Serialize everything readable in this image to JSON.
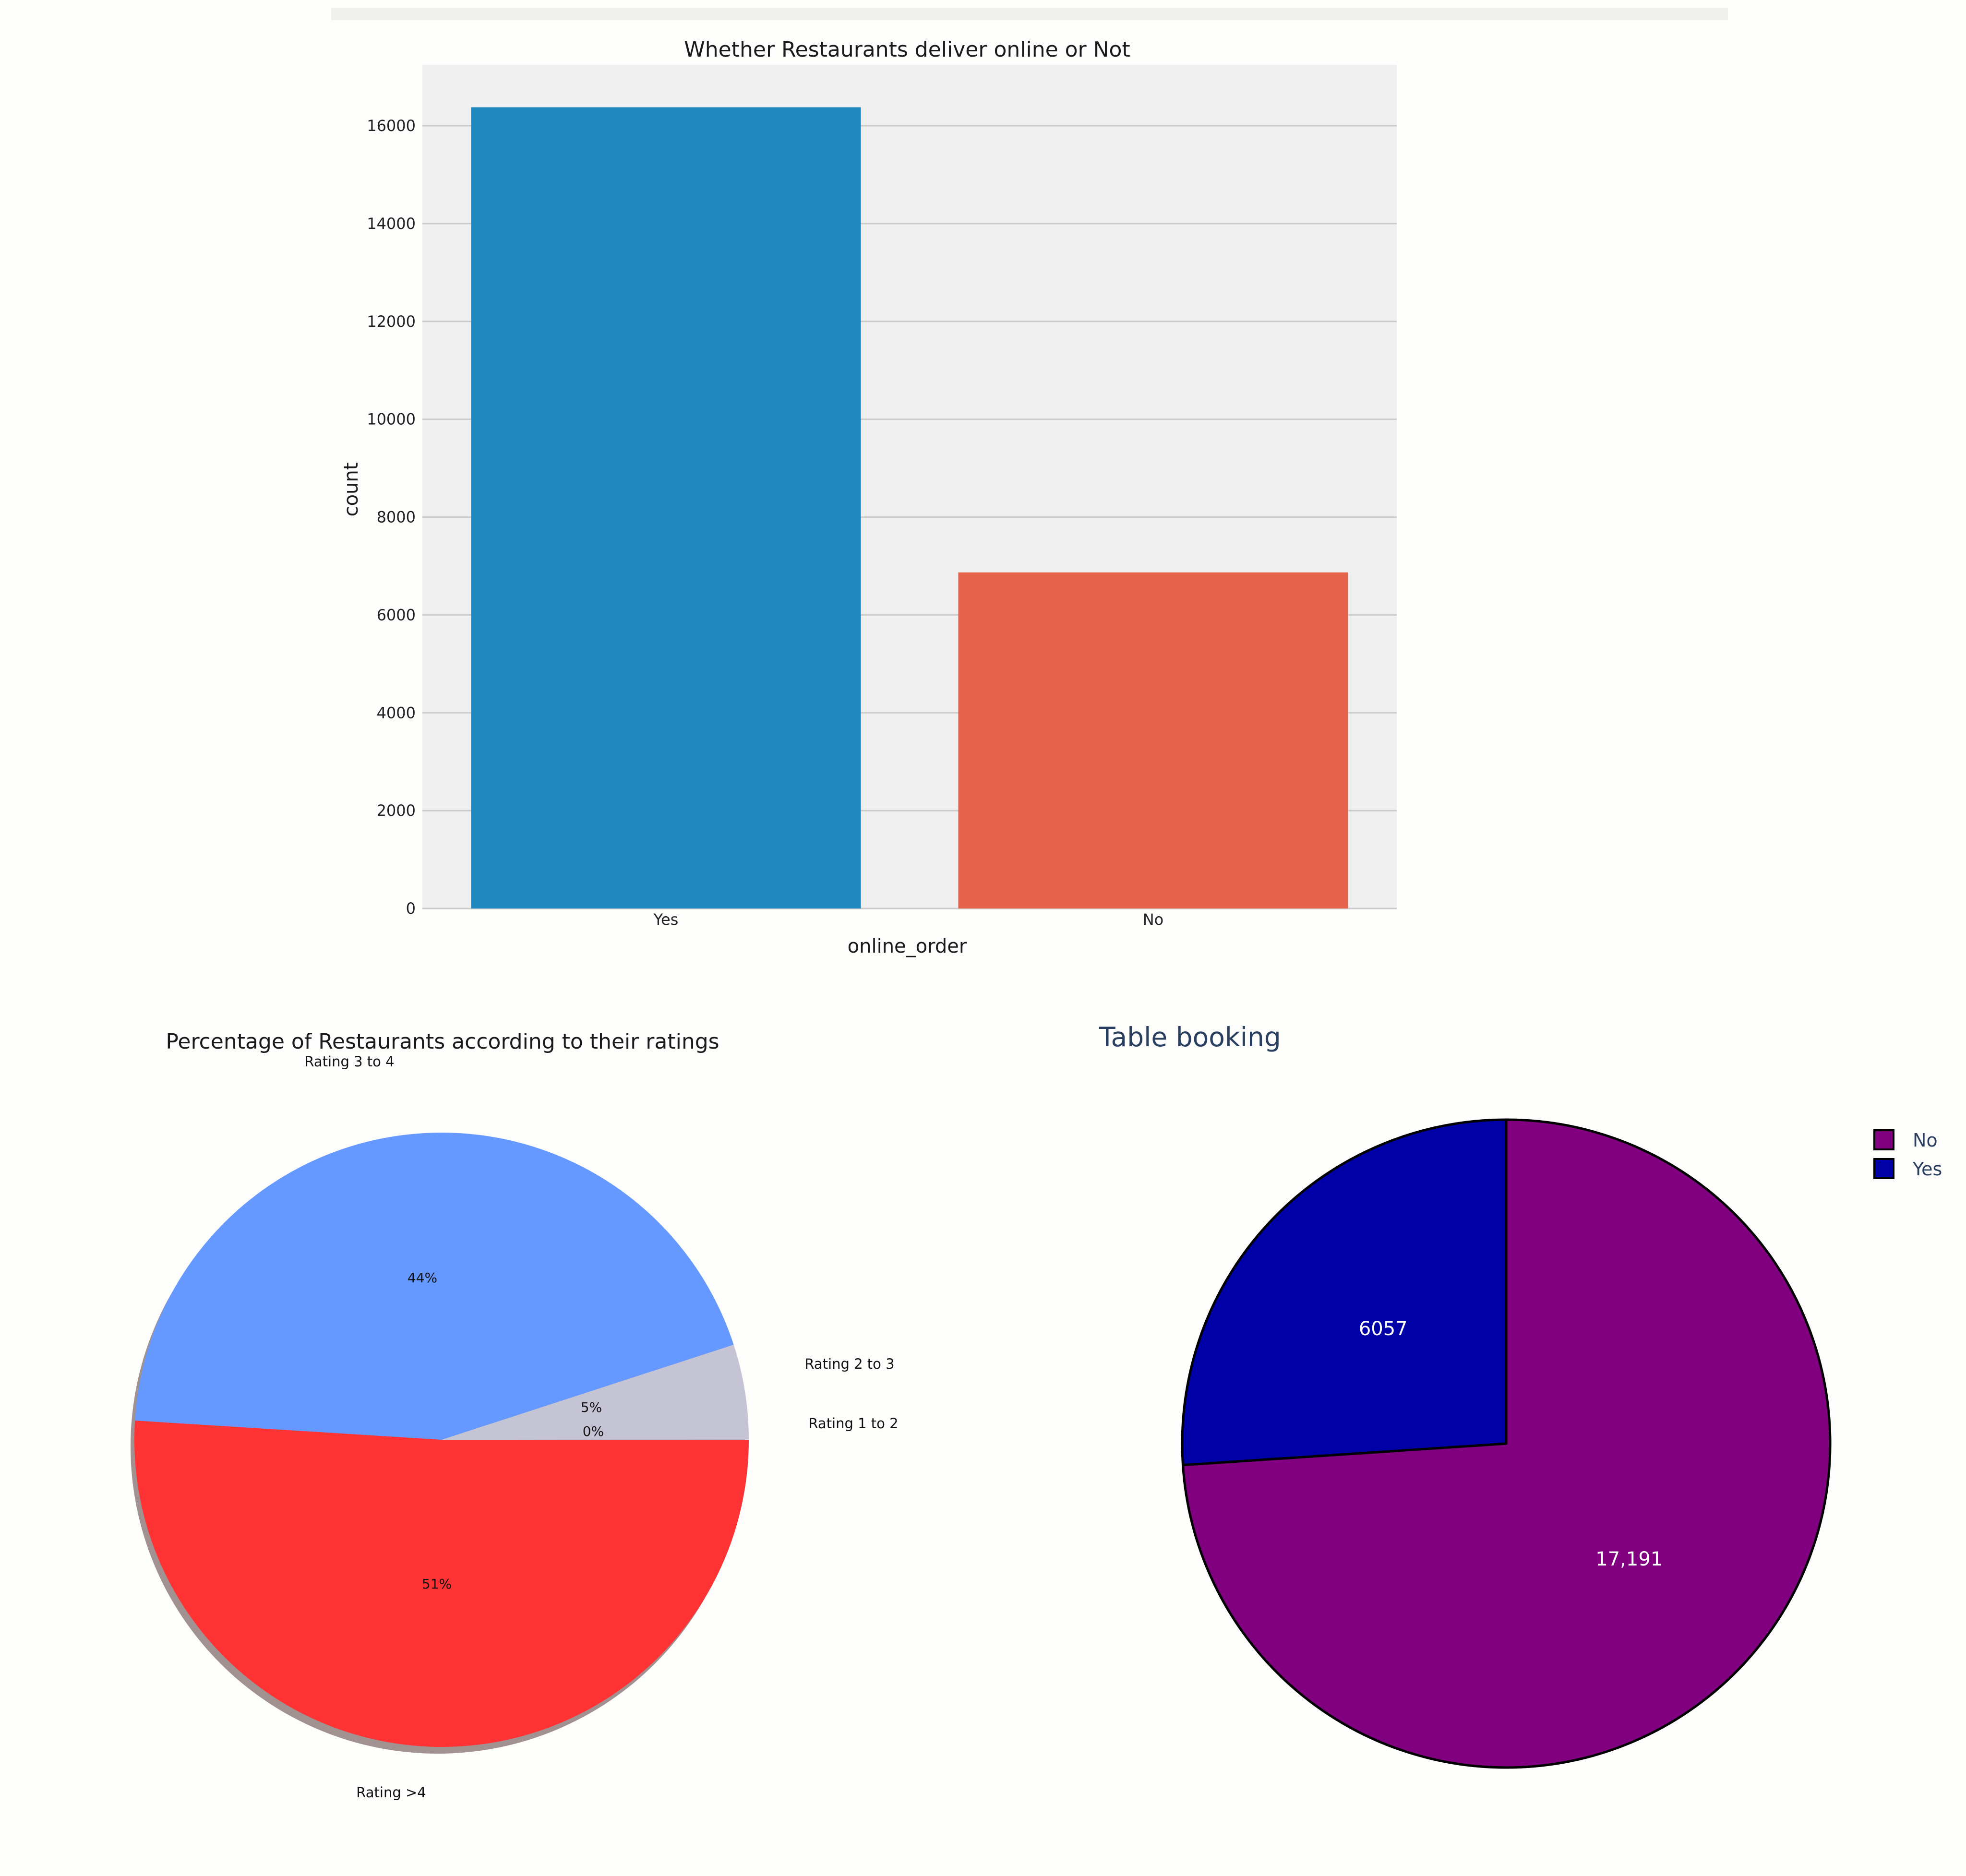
{
  "chart_data": [
    {
      "type": "bar",
      "title": "Whether Restaurants deliver online or Not",
      "xlabel": "online_order",
      "ylabel": "count",
      "categories": [
        "Yes",
        "No"
      ],
      "values": [
        16378,
        6870
      ],
      "colors": [
        "#1f88be",
        "#e5634b"
      ],
      "ylim": [
        0,
        17300
      ],
      "yticks": [
        0,
        2000,
        4000,
        6000,
        8000,
        10000,
        12000,
        14000,
        16000
      ],
      "ytick_labels": [
        "0",
        "2000",
        "4000",
        "6000",
        "8000",
        "10000",
        "12000",
        "14000",
        "16000"
      ],
      "grid": true
    },
    {
      "type": "pie",
      "title": "Percentage of Restaurants according to their ratings",
      "labels": [
        "Rating 3 to 4",
        "Rating 2 to 3",
        "Rating 1 to 2",
        "Rating >4"
      ],
      "values": [
        44,
        5,
        0.01,
        51
      ],
      "pct_labels": [
        "44%",
        "5%",
        "0%",
        "51%"
      ],
      "colors": [
        "#6699ff",
        "#c4c4d4",
        "#7fbf7f",
        "#ff3333"
      ],
      "shadow": true
    },
    {
      "type": "pie",
      "title": "Table booking",
      "labels": [
        "No",
        "Yes"
      ],
      "values": [
        17191,
        6057
      ],
      "value_labels": [
        "17,191",
        "6057"
      ],
      "colors": [
        "#800080",
        "#0000a7"
      ],
      "legend": [
        "No",
        "Yes"
      ],
      "legend_placement": "right"
    }
  ]
}
